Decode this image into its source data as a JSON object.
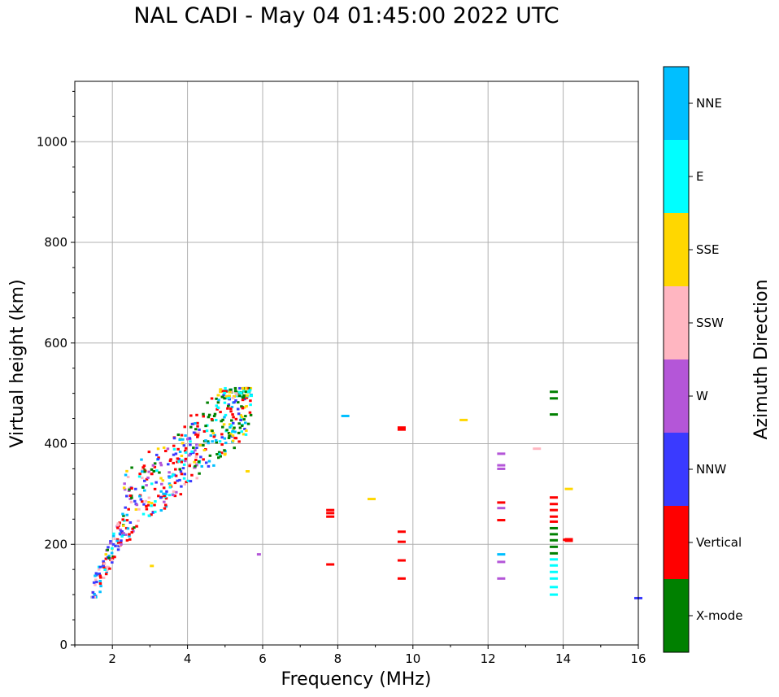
{
  "chart_data": {
    "type": "scatter",
    "title": "NAL CADI - May 04 01:45:00 2022 UTC",
    "xlabel": "Frequency (MHz)",
    "ylabel": "Virtual height (km)",
    "xlim": [
      1,
      16
    ],
    "ylim": [
      0,
      1120
    ],
    "xticks": [
      2,
      4,
      6,
      8,
      10,
      12,
      14,
      16
    ],
    "yticks": [
      0,
      200,
      400,
      600,
      800,
      1000
    ],
    "grid": true,
    "colorbar": {
      "label": "Azimuth Direction",
      "categories": [
        {
          "name": "X-mode",
          "color": "#008000"
        },
        {
          "name": "Vertical",
          "color": "#ff0000"
        },
        {
          "name": "NNW",
          "color": "#3a3aff"
        },
        {
          "name": "W",
          "color": "#b456d8"
        },
        {
          "name": "SSW",
          "color": "#ffb6c1"
        },
        {
          "name": "SSE",
          "color": "#ffd700"
        },
        {
          "name": "E",
          "color": "#00ffff"
        },
        {
          "name": "NNE",
          "color": "#00bfff"
        }
      ]
    },
    "points": [
      {
        "f": 7.8,
        "h": 268,
        "c": "Vertical"
      },
      {
        "f": 7.8,
        "h": 262,
        "c": "Vertical"
      },
      {
        "f": 7.8,
        "h": 255,
        "c": "Vertical"
      },
      {
        "f": 7.8,
        "h": 160,
        "c": "Vertical"
      },
      {
        "f": 8.2,
        "h": 455,
        "c": "NNE"
      },
      {
        "f": 8.9,
        "h": 290,
        "c": "SSE"
      },
      {
        "f": 9.7,
        "h": 432,
        "c": "Vertical"
      },
      {
        "f": 9.7,
        "h": 428,
        "c": "Vertical"
      },
      {
        "f": 9.7,
        "h": 225,
        "c": "Vertical"
      },
      {
        "f": 9.7,
        "h": 205,
        "c": "Vertical"
      },
      {
        "f": 9.7,
        "h": 168,
        "c": "Vertical"
      },
      {
        "f": 9.7,
        "h": 132,
        "c": "Vertical"
      },
      {
        "f": 11.35,
        "h": 447,
        "c": "SSE"
      },
      {
        "f": 12.35,
        "h": 380,
        "c": "W"
      },
      {
        "f": 12.35,
        "h": 357,
        "c": "W"
      },
      {
        "f": 12.35,
        "h": 350,
        "c": "W"
      },
      {
        "f": 12.35,
        "h": 283,
        "c": "Vertical"
      },
      {
        "f": 12.35,
        "h": 272,
        "c": "W"
      },
      {
        "f": 12.35,
        "h": 248,
        "c": "Vertical"
      },
      {
        "f": 12.35,
        "h": 180,
        "c": "NNE"
      },
      {
        "f": 12.35,
        "h": 165,
        "c": "W"
      },
      {
        "f": 12.35,
        "h": 132,
        "c": "W"
      },
      {
        "f": 13.3,
        "h": 390,
        "c": "SSW"
      },
      {
        "f": 13.75,
        "h": 503,
        "c": "X-mode"
      },
      {
        "f": 13.75,
        "h": 490,
        "c": "X-mode"
      },
      {
        "f": 13.75,
        "h": 458,
        "c": "X-mode"
      },
      {
        "f": 13.75,
        "h": 293,
        "c": "Vertical"
      },
      {
        "f": 13.75,
        "h": 280,
        "c": "Vertical"
      },
      {
        "f": 13.75,
        "h": 268,
        "c": "Vertical"
      },
      {
        "f": 13.75,
        "h": 255,
        "c": "Vertical"
      },
      {
        "f": 13.75,
        "h": 245,
        "c": "Vertical"
      },
      {
        "f": 13.75,
        "h": 232,
        "c": "X-mode"
      },
      {
        "f": 13.75,
        "h": 220,
        "c": "X-mode"
      },
      {
        "f": 13.75,
        "h": 208,
        "c": "X-mode"
      },
      {
        "f": 13.75,
        "h": 195,
        "c": "X-mode"
      },
      {
        "f": 13.75,
        "h": 182,
        "c": "X-mode"
      },
      {
        "f": 13.75,
        "h": 170,
        "c": "E"
      },
      {
        "f": 13.75,
        "h": 158,
        "c": "E"
      },
      {
        "f": 13.75,
        "h": 145,
        "c": "E"
      },
      {
        "f": 13.75,
        "h": 132,
        "c": "E"
      },
      {
        "f": 13.75,
        "h": 115,
        "c": "E"
      },
      {
        "f": 13.75,
        "h": 100,
        "c": "E"
      },
      {
        "f": 14.15,
        "h": 310,
        "c": "SSE"
      },
      {
        "f": 14.15,
        "h": 210,
        "c": "Vertical"
      },
      {
        "f": 14.15,
        "h": 207,
        "c": "Vertical"
      },
      {
        "f": 14.1,
        "h": 209,
        "c": "Vertical"
      },
      {
        "f": 5.9,
        "h": 180,
        "c": "W"
      },
      {
        "f": 5.6,
        "h": 345,
        "c": "SSE"
      },
      {
        "f": 3.05,
        "h": 157,
        "c": "SSE"
      },
      {
        "f": 16.0,
        "h": 93,
        "c": "NNW"
      }
    ],
    "cluster": {
      "description": "dense trace",
      "f_range": [
        1.45,
        5.7
      ],
      "h_range": [
        95,
        510
      ]
    }
  }
}
